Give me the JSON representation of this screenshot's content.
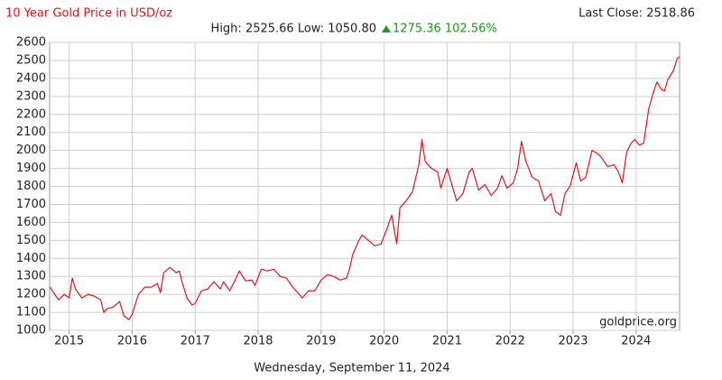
{
  "chart_data": {
    "type": "line",
    "title": "10 Year Gold Price in USD/oz",
    "last_close": "Last Close: 2518.86",
    "stats": "High: 2525.66 Low: 1050.80",
    "change": "1275.36 102.56%",
    "watermark": "goldprice.org",
    "date": "Wednesday, September 11, 2024",
    "color": "#e8141a",
    "grid": true,
    "x": [
      2014.7,
      2014.75,
      2014.83,
      2014.92,
      2015.0,
      2015.05,
      2015.1,
      2015.2,
      2015.3,
      2015.4,
      2015.5,
      2015.55,
      2015.6,
      2015.7,
      2015.8,
      2015.87,
      2015.95,
      2016.0,
      2016.1,
      2016.2,
      2016.3,
      2016.4,
      2016.45,
      2016.5,
      2016.6,
      2016.7,
      2016.75,
      2016.8,
      2016.87,
      2016.95,
      2017.0,
      2017.1,
      2017.2,
      2017.3,
      2017.4,
      2017.45,
      2017.55,
      2017.65,
      2017.7,
      2017.8,
      2017.9,
      2017.95,
      2018.05,
      2018.15,
      2018.25,
      2018.35,
      2018.45,
      2018.55,
      2018.65,
      2018.7,
      2018.8,
      2018.9,
      2019.0,
      2019.1,
      2019.2,
      2019.3,
      2019.4,
      2019.45,
      2019.5,
      2019.6,
      2019.65,
      2019.75,
      2019.85,
      2019.95,
      2020.05,
      2020.12,
      2020.2,
      2020.25,
      2020.35,
      2020.45,
      2020.55,
      2020.6,
      2020.65,
      2020.75,
      2020.85,
      2020.9,
      2021.0,
      2021.05,
      2021.15,
      2021.25,
      2021.35,
      2021.4,
      2021.5,
      2021.6,
      2021.7,
      2021.8,
      2021.87,
      2021.95,
      2022.05,
      2022.12,
      2022.18,
      2022.25,
      2022.35,
      2022.45,
      2022.55,
      2022.65,
      2022.72,
      2022.8,
      2022.87,
      2022.95,
      2023.05,
      2023.12,
      2023.2,
      2023.3,
      2023.4,
      2023.45,
      2023.55,
      2023.65,
      2023.72,
      2023.78,
      2023.85,
      2023.92,
      2023.98,
      2024.05,
      2024.12,
      2024.2,
      2024.28,
      2024.33,
      2024.4,
      2024.45,
      2024.5,
      2024.55,
      2024.6,
      2024.65,
      2024.69
    ],
    "values": [
      1240,
      1210,
      1170,
      1200,
      1180,
      1290,
      1230,
      1180,
      1200,
      1190,
      1170,
      1100,
      1120,
      1130,
      1160,
      1080,
      1060,
      1090,
      1200,
      1240,
      1240,
      1260,
      1210,
      1320,
      1350,
      1320,
      1330,
      1260,
      1180,
      1140,
      1150,
      1220,
      1230,
      1270,
      1230,
      1270,
      1220,
      1290,
      1330,
      1275,
      1280,
      1250,
      1340,
      1330,
      1340,
      1300,
      1290,
      1240,
      1200,
      1180,
      1220,
      1220,
      1280,
      1310,
      1300,
      1280,
      1290,
      1340,
      1420,
      1500,
      1530,
      1500,
      1470,
      1480,
      1570,
      1640,
      1480,
      1680,
      1720,
      1770,
      1920,
      2060,
      1940,
      1900,
      1880,
      1790,
      1900,
      1840,
      1720,
      1760,
      1880,
      1900,
      1780,
      1810,
      1750,
      1790,
      1860,
      1790,
      1820,
      1900,
      2050,
      1940,
      1850,
      1830,
      1720,
      1760,
      1660,
      1640,
      1760,
      1800,
      1930,
      1830,
      1850,
      2000,
      1980,
      1960,
      1910,
      1920,
      1880,
      1820,
      1990,
      2040,
      2060,
      2030,
      2040,
      2230,
      2330,
      2380,
      2340,
      2330,
      2390,
      2420,
      2450,
      2510,
      2519
    ],
    "xlim": [
      2014.69,
      2024.69
    ],
    "xticks": [
      2015,
      2016,
      2017,
      2018,
      2019,
      2020,
      2021,
      2022,
      2023,
      2024
    ],
    "ylim": [
      1000,
      2600
    ],
    "yticks": [
      1000,
      1100,
      1200,
      1300,
      1400,
      1500,
      1600,
      1700,
      1800,
      1900,
      2000,
      2100,
      2200,
      2300,
      2400,
      2500,
      2600
    ]
  }
}
